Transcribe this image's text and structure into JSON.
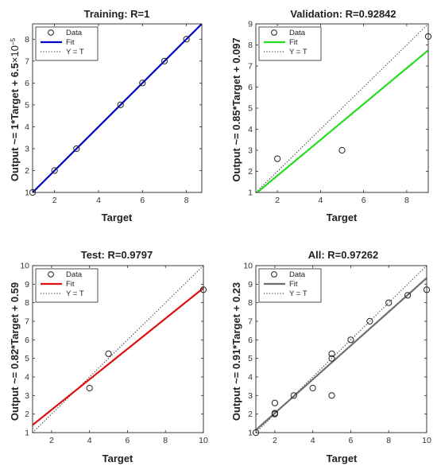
{
  "chart_data": [
    {
      "type": "scatter",
      "title": "Training: R=1",
      "xlabel": "Target",
      "ylabel": "Output ~= 1*Target + 6.5",
      "ylabel_exp_base": "×10",
      "ylabel_exp": "−5",
      "xlim": [
        1,
        8.7
      ],
      "ylim": [
        1,
        8.7
      ],
      "xticks": [
        2,
        4,
        6,
        8
      ],
      "yticks": [
        1,
        2,
        3,
        4,
        5,
        6,
        7,
        8
      ],
      "points": [
        [
          1,
          1
        ],
        [
          2,
          2
        ],
        [
          3,
          3
        ],
        [
          5,
          5
        ],
        [
          6,
          6
        ],
        [
          7,
          7
        ],
        [
          8,
          8
        ]
      ],
      "fit": {
        "slope": 1,
        "intercept": 6.5e-05,
        "color": "#0000c8"
      },
      "legend": [
        "Data",
        "Fit",
        "Y = T"
      ],
      "grid": false
    },
    {
      "type": "scatter",
      "title": "Validation: R=0.92842",
      "xlabel": "Target",
      "ylabel": "Output ~= 0.85*Target + 0.097",
      "xlim": [
        1,
        9
      ],
      "ylim": [
        1,
        9
      ],
      "xticks": [
        2,
        4,
        6,
        8
      ],
      "yticks": [
        1,
        2,
        3,
        4,
        5,
        6,
        7,
        8,
        9
      ],
      "points": [
        [
          2,
          2.6
        ],
        [
          5,
          3
        ],
        [
          9,
          8.4
        ]
      ],
      "fit": {
        "slope": 0.85,
        "intercept": 0.097,
        "color": "#22dd22"
      },
      "legend": [
        "Data",
        "Fit",
        "Y = T"
      ],
      "grid": false
    },
    {
      "type": "scatter",
      "title": "Test: R=0.9797",
      "xlabel": "Target",
      "ylabel": "Output ~= 0.82*Target + 0.59",
      "xlim": [
        1,
        10
      ],
      "ylim": [
        1,
        10
      ],
      "xticks": [
        2,
        4,
        6,
        8,
        10
      ],
      "yticks": [
        1,
        2,
        3,
        4,
        5,
        6,
        7,
        8,
        9,
        10
      ],
      "points": [
        [
          4,
          3.4
        ],
        [
          5,
          5.25
        ],
        [
          10,
          8.7
        ]
      ],
      "fit": {
        "slope": 0.82,
        "intercept": 0.59,
        "color": "#e01010"
      },
      "legend": [
        "Data",
        "Fit",
        "Y = T"
      ],
      "grid": false
    },
    {
      "type": "scatter",
      "title": "All: R=0.97262",
      "xlabel": "Target",
      "ylabel": "Output ~= 0.91*Target + 0.23",
      "xlim": [
        1,
        10
      ],
      "ylim": [
        1,
        10
      ],
      "xticks": [
        2,
        4,
        6,
        8,
        10
      ],
      "yticks": [
        1,
        2,
        3,
        4,
        5,
        6,
        7,
        8,
        9,
        10
      ],
      "points": [
        [
          1,
          1
        ],
        [
          2,
          2
        ],
        [
          2,
          2.05
        ],
        [
          2,
          2.6
        ],
        [
          3,
          3
        ],
        [
          4,
          3.4
        ],
        [
          5,
          3
        ],
        [
          5,
          5
        ],
        [
          5,
          5.25
        ],
        [
          6,
          6
        ],
        [
          7,
          7
        ],
        [
          8,
          8
        ],
        [
          9,
          8.4
        ],
        [
          10,
          8.7
        ]
      ],
      "fit": {
        "slope": 0.91,
        "intercept": 0.23,
        "color": "#6e6e6e"
      },
      "legend": [
        "Data",
        "Fit",
        "Y = T"
      ],
      "grid": false
    }
  ]
}
